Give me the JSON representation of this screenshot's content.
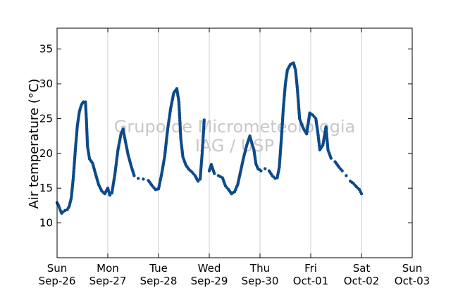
{
  "chart_data": {
    "type": "scatter",
    "ylabel": "Air temperature (°C)",
    "xlabel": "",
    "ylim": [
      5,
      38
    ],
    "y_ticks": [
      10,
      15,
      20,
      25,
      30,
      35
    ],
    "x_ticks": [
      {
        "day": "Sun",
        "date": "Sep-26"
      },
      {
        "day": "Mon",
        "date": "Sep-27"
      },
      {
        "day": "Tue",
        "date": "Sep-28"
      },
      {
        "day": "Wed",
        "date": "Sep-29"
      },
      {
        "day": "Thu",
        "date": "Sep-30"
      },
      {
        "day": "Fri",
        "date": "Oct-01"
      },
      {
        "day": "Sat",
        "date": "Oct-02"
      },
      {
        "day": "Sun",
        "date": "Oct-03"
      }
    ],
    "x_unit": "days from Sep-26 00:00",
    "xlim": [
      0,
      7
    ],
    "vertical_grid": true,
    "watermark": [
      "Grupo de Micrometeorologia",
      "IAG / USP"
    ],
    "marker_color": "#0d4a8a",
    "series": [
      {
        "name": "",
        "points": [
          [
            0.0,
            12.9
          ],
          [
            0.03,
            12.5
          ],
          [
            0.06,
            11.9
          ],
          [
            0.09,
            11.4
          ],
          [
            0.12,
            11.6
          ],
          [
            0.16,
            11.8
          ],
          [
            0.2,
            11.9
          ],
          [
            0.24,
            12.4
          ],
          [
            0.28,
            13.6
          ],
          [
            0.32,
            16.5
          ],
          [
            0.36,
            20.5
          ],
          [
            0.4,
            24.0
          ],
          [
            0.44,
            26.0
          ],
          [
            0.48,
            27.0
          ],
          [
            0.52,
            27.4
          ],
          [
            0.56,
            27.4
          ],
          [
            0.58,
            24.5
          ],
          [
            0.6,
            21.0
          ],
          [
            0.64,
            19.2
          ],
          [
            0.7,
            18.6
          ],
          [
            0.76,
            17.0
          ],
          [
            0.82,
            15.5
          ],
          [
            0.88,
            14.6
          ],
          [
            0.94,
            14.2
          ],
          [
            1.0,
            15.0
          ],
          [
            1.04,
            14.0
          ],
          [
            1.08,
            14.3
          ],
          [
            1.14,
            17.0
          ],
          [
            1.2,
            20.5
          ],
          [
            1.26,
            22.8
          ],
          [
            1.3,
            23.5
          ],
          [
            1.34,
            22.0
          ],
          [
            1.4,
            19.8
          ],
          [
            1.46,
            18.2
          ],
          [
            1.52,
            16.8
          ],
          [
            1.6,
            16.4
          ],
          [
            1.7,
            16.3
          ],
          [
            1.8,
            16.1
          ],
          [
            1.88,
            15.3
          ],
          [
            1.94,
            14.8
          ],
          [
            2.0,
            14.9
          ],
          [
            2.06,
            17.0
          ],
          [
            2.12,
            19.5
          ],
          [
            2.18,
            23.5
          ],
          [
            2.24,
            26.5
          ],
          [
            2.3,
            28.7
          ],
          [
            2.36,
            29.3
          ],
          [
            2.4,
            27.5
          ],
          [
            2.44,
            22.0
          ],
          [
            2.48,
            19.5
          ],
          [
            2.54,
            18.3
          ],
          [
            2.6,
            17.7
          ],
          [
            2.66,
            17.3
          ],
          [
            2.72,
            16.8
          ],
          [
            2.78,
            16.0
          ],
          [
            2.82,
            16.3
          ],
          [
            2.86,
            20.0
          ],
          [
            2.9,
            24.8
          ],
          [
            3.0,
            17.5
          ],
          [
            3.04,
            18.4
          ],
          [
            3.1,
            17.1
          ],
          [
            3.18,
            16.8
          ],
          [
            3.26,
            16.5
          ],
          [
            3.32,
            15.3
          ],
          [
            3.38,
            14.8
          ],
          [
            3.44,
            14.2
          ],
          [
            3.5,
            14.5
          ],
          [
            3.56,
            15.5
          ],
          [
            3.62,
            17.5
          ],
          [
            3.68,
            19.5
          ],
          [
            3.74,
            21.2
          ],
          [
            3.8,
            22.5
          ],
          [
            3.84,
            21.5
          ],
          [
            3.88,
            20.5
          ],
          [
            3.92,
            18.5
          ],
          [
            3.96,
            17.8
          ],
          [
            4.02,
            17.5
          ],
          [
            4.1,
            17.8
          ],
          [
            4.18,
            17.5
          ],
          [
            4.24,
            16.8
          ],
          [
            4.3,
            16.4
          ],
          [
            4.34,
            16.5
          ],
          [
            4.38,
            18.0
          ],
          [
            4.42,
            22.0
          ],
          [
            4.46,
            26.5
          ],
          [
            4.5,
            30.0
          ],
          [
            4.54,
            32.0
          ],
          [
            4.6,
            32.8
          ],
          [
            4.66,
            33.0
          ],
          [
            4.7,
            32.0
          ],
          [
            4.74,
            29.0
          ],
          [
            4.78,
            25.0
          ],
          [
            4.82,
            24.2
          ],
          [
            4.86,
            23.5
          ],
          [
            4.92,
            22.8
          ],
          [
            4.98,
            25.8
          ],
          [
            5.04,
            25.5
          ],
          [
            5.1,
            25.0
          ],
          [
            5.14,
            23.0
          ],
          [
            5.18,
            20.5
          ],
          [
            5.24,
            21.2
          ],
          [
            5.3,
            23.8
          ],
          [
            5.34,
            20.5
          ],
          [
            5.4,
            19.3
          ],
          [
            5.48,
            18.8
          ],
          [
            5.56,
            18.0
          ],
          [
            5.62,
            17.5
          ],
          [
            5.7,
            16.8
          ],
          [
            5.78,
            16.0
          ],
          [
            5.84,
            15.7
          ],
          [
            5.9,
            15.2
          ],
          [
            5.96,
            14.8
          ],
          [
            6.0,
            14.2
          ]
        ]
      }
    ]
  }
}
